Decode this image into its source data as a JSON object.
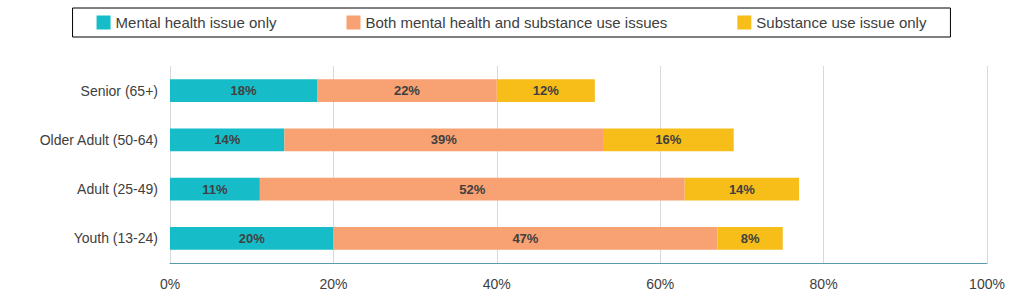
{
  "chart_data": {
    "type": "bar",
    "orientation": "horizontal",
    "stacked": true,
    "data_labels": true,
    "grid": true,
    "legend": "top",
    "categories": [
      "Youth (13-24)",
      "Adult (25-49)",
      "Older Adult (50-64)",
      "Senior (65+)"
    ],
    "series": [
      {
        "name": "Mental health issue only",
        "color": "#17bcc9",
        "values": [
          20,
          11,
          14,
          18
        ],
        "value_labels": [
          "20%",
          "11%",
          "14%",
          "18%"
        ]
      },
      {
        "name": "Both mental health and substance use issues",
        "color": "#f8a172",
        "values": [
          47,
          52,
          39,
          22
        ],
        "value_labels": [
          "47%",
          "52%",
          "39%",
          "22%"
        ]
      },
      {
        "name": "Substance use issue only",
        "color": "#f7bd19",
        "values": [
          8,
          14,
          16,
          12
        ],
        "value_labels": [
          "8%",
          "14%",
          "16%",
          "12%"
        ]
      }
    ],
    "xlim": [
      0,
      100
    ],
    "xticks": [
      {
        "value": 0,
        "label": "0%"
      },
      {
        "value": 20,
        "label": "20%"
      },
      {
        "value": 40,
        "label": "40%"
      },
      {
        "value": 60,
        "label": "60%"
      },
      {
        "value": 80,
        "label": "80%"
      },
      {
        "value": 100,
        "label": "100%"
      }
    ]
  }
}
